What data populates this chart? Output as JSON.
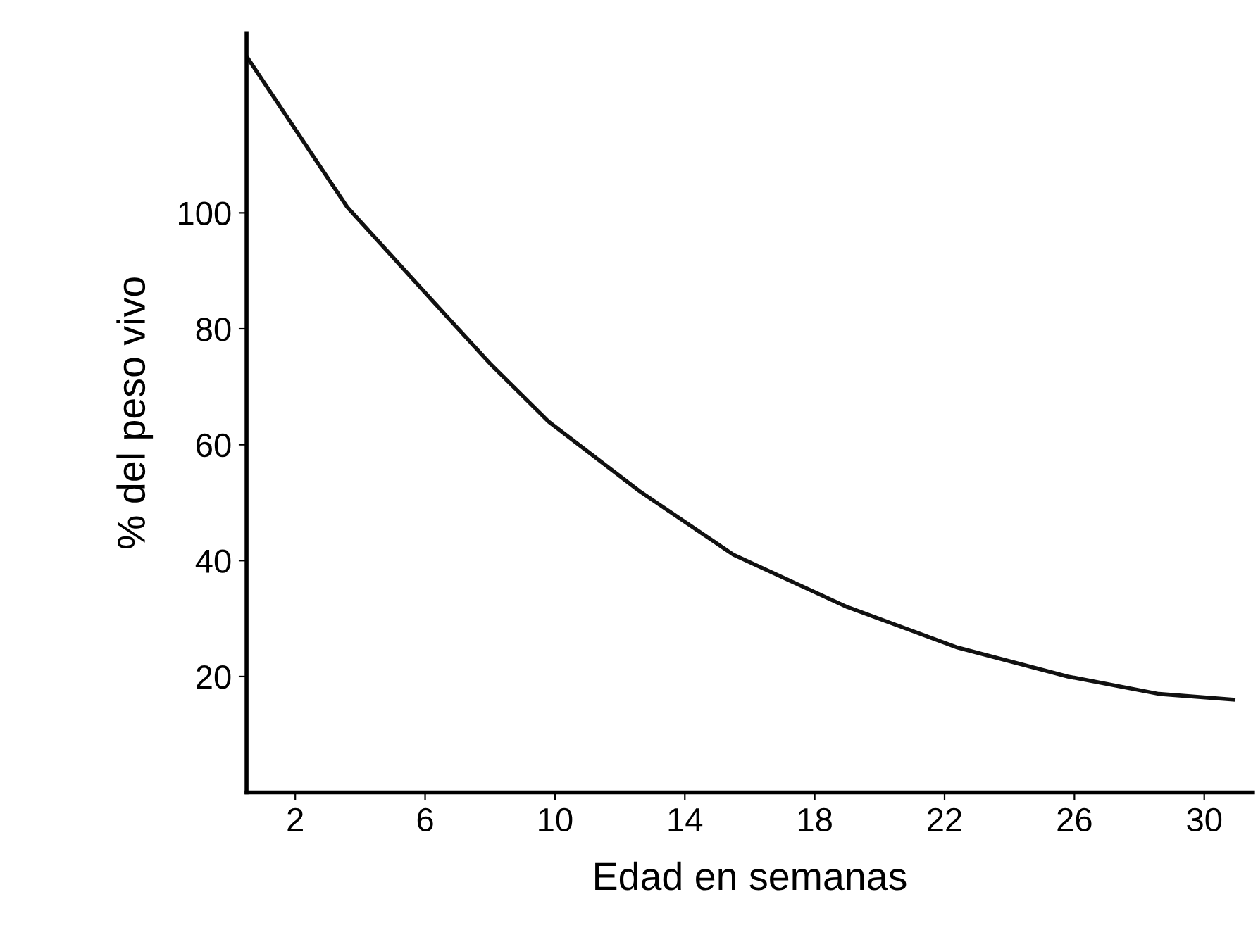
{
  "chart_data": {
    "type": "line",
    "xlabel": "Edad en semanas",
    "ylabel": "% del peso vivo",
    "x": [
      0.5,
      3.6,
      6.2,
      8.0,
      9.8,
      12.6,
      15.5,
      19.0,
      22.4,
      25.8,
      28.6,
      30.9
    ],
    "series": [
      {
        "color": "#111111",
        "values": [
          127,
          101,
          85,
          74,
          64,
          52,
          41,
          32,
          25,
          20,
          17,
          16
        ]
      }
    ],
    "xlim": [
      0.5,
      31.5
    ],
    "ylim": [
      0,
      131
    ],
    "xticks": [
      2,
      6,
      10,
      14,
      18,
      22,
      26,
      30
    ],
    "yticks": [
      20,
      40,
      60,
      80,
      100
    ],
    "grid": false,
    "legend": false,
    "marker": "none",
    "line_style": "solid"
  }
}
